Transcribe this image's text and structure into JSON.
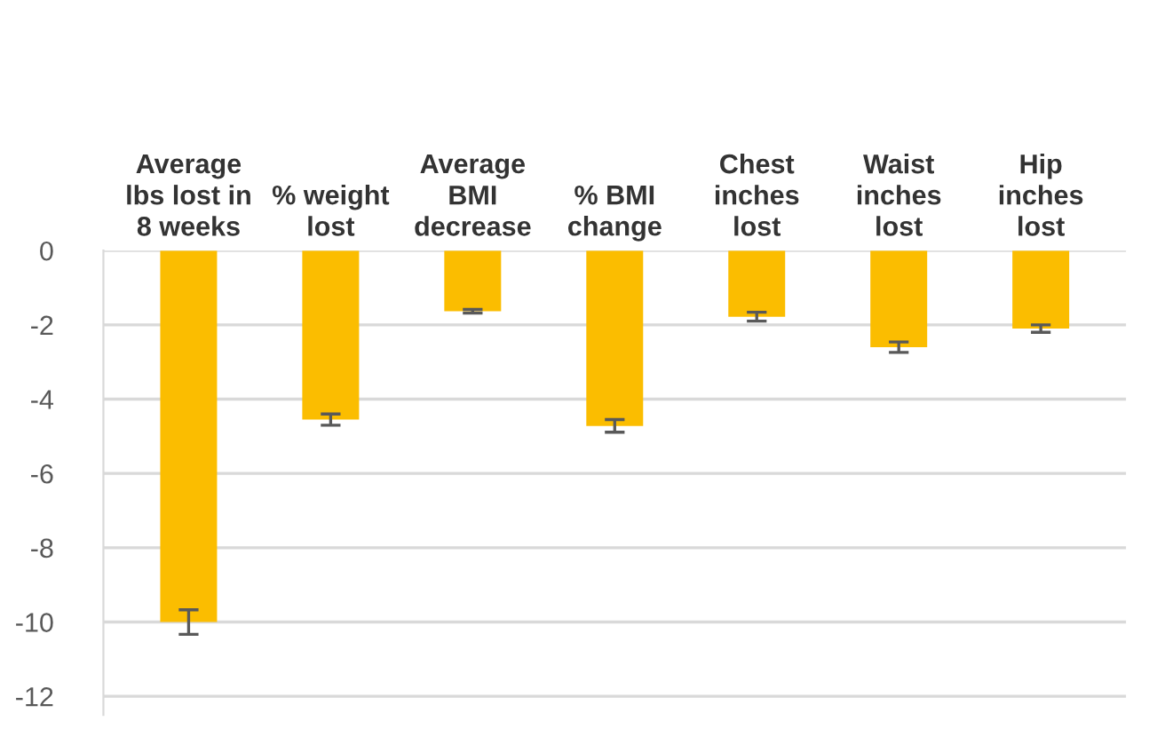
{
  "chart_data": {
    "type": "bar",
    "categories": [
      "Average lbs lost in 8 weeks",
      "% weight lost",
      "Average BMI decrease",
      "% BMI change",
      "Chest inches lost",
      "Waist inches lost",
      "Hip inches lost"
    ],
    "values": [
      -10.0,
      -4.55,
      -1.63,
      -4.72,
      -1.78,
      -2.6,
      -2.1
    ],
    "errors": [
      0.33,
      0.15,
      0.05,
      0.17,
      0.12,
      0.14,
      0.1
    ],
    "color": "#fbbd00",
    "ylim": [
      -12.5,
      0
    ],
    "yticks": [
      0,
      -2,
      -4,
      -6,
      -8,
      -10,
      -12
    ],
    "grid": "y"
  }
}
